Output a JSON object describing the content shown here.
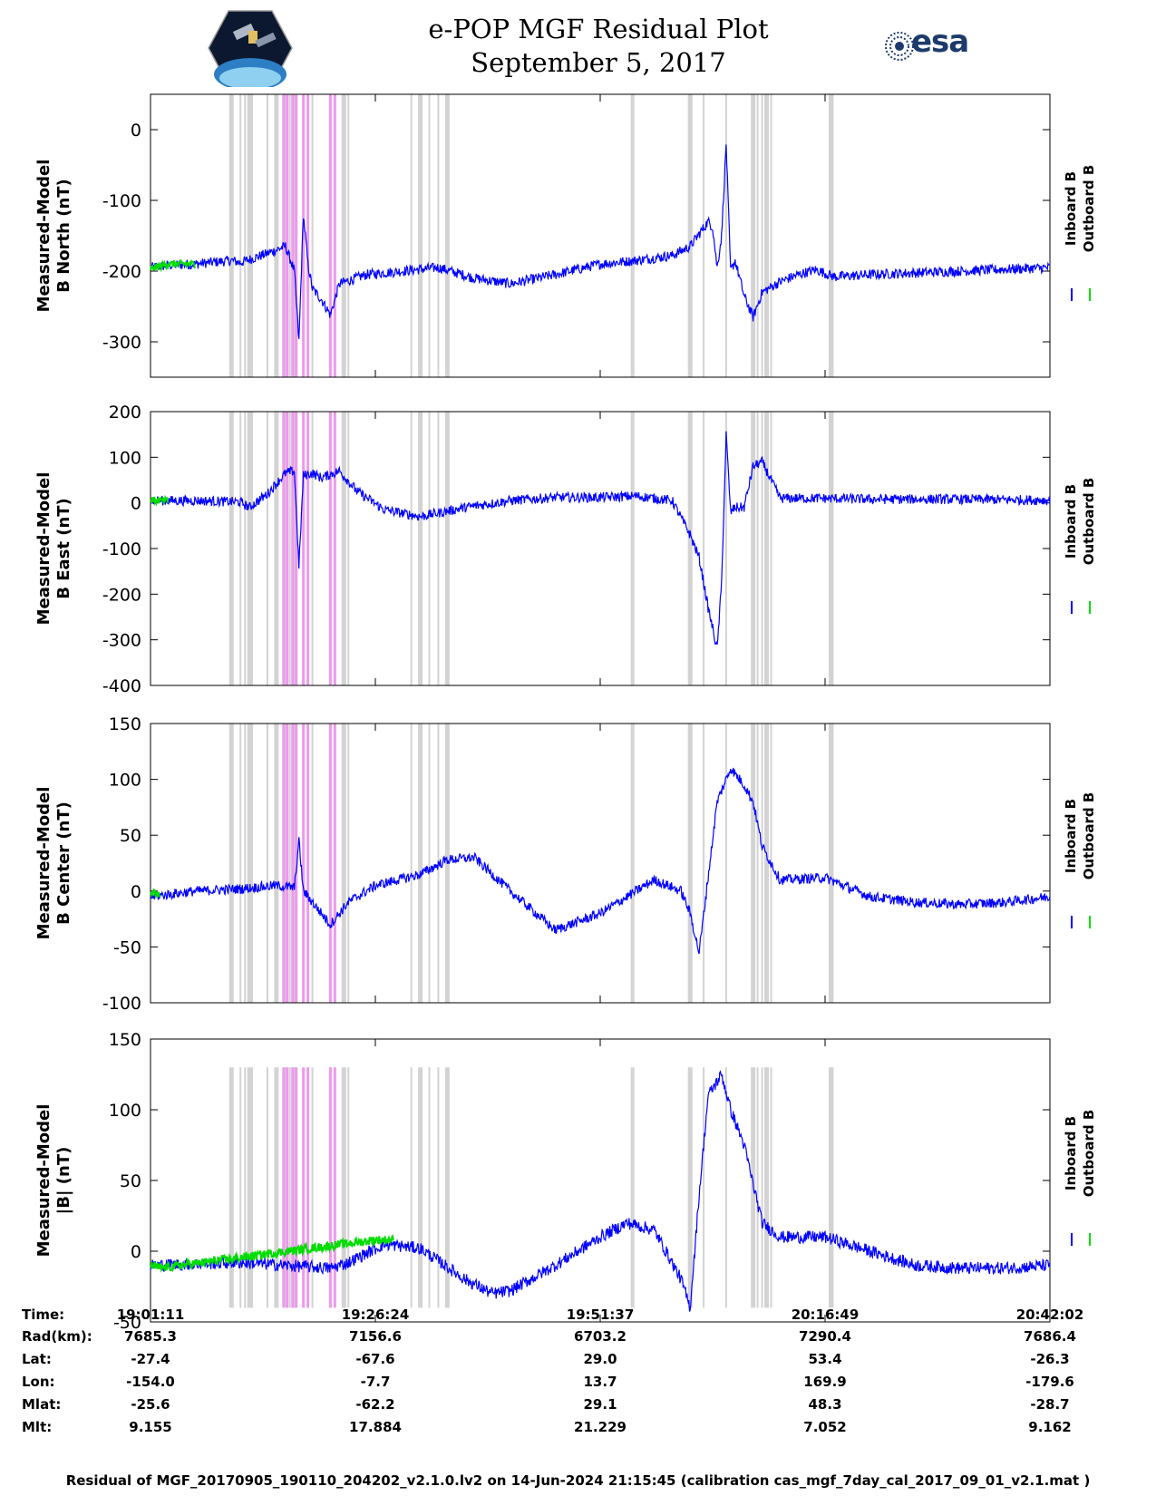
{
  "header": {
    "title": "e-POP MGF Residual Plot",
    "subtitle": "September 5, 2017",
    "left_logo": "cassiope-satellite-logo",
    "right_logo_text": "esa"
  },
  "colors": {
    "inboard": "#0000ff",
    "outboard": "#00dd00",
    "gray_band": "#d3d3d3",
    "pink_band": "#ee99ee"
  },
  "chart_data": [
    {
      "type": "line",
      "ylabel": [
        "Measured-Model",
        "B North (nT)"
      ],
      "ylim": [
        -350,
        50
      ],
      "yticks": [
        0,
        -100,
        -200,
        -300
      ],
      "legend": [
        "Inboard B",
        "Outboard B"
      ],
      "series": [
        {
          "name": "Inboard B",
          "x": [
            0,
            0.02,
            0.05,
            0.09,
            0.1,
            0.13,
            0.15,
            0.16,
            0.165,
            0.17,
            0.175,
            0.18,
            0.19,
            0.2,
            0.21,
            0.24,
            0.28,
            0.32,
            0.36,
            0.4,
            0.45,
            0.5,
            0.54,
            0.58,
            0.6,
            0.62,
            0.625,
            0.63,
            0.635,
            0.64,
            0.645,
            0.65,
            0.66,
            0.67,
            0.68,
            0.7,
            0.72,
            0.74,
            0.76,
            0.8,
            0.9,
            1.0
          ],
          "y": [
            -195,
            -192,
            -190,
            -185,
            -188,
            -175,
            -165,
            -200,
            -300,
            -120,
            -190,
            -225,
            -240,
            -262,
            -218,
            -205,
            -200,
            -195,
            -210,
            -218,
            -205,
            -190,
            -185,
            -178,
            -165,
            -130,
            -138,
            -195,
            -150,
            -20,
            -200,
            -185,
            -235,
            -265,
            -230,
            -215,
            -205,
            -198,
            -208,
            -205,
            -200,
            -195
          ]
        },
        {
          "name": "Outboard B",
          "x": [
            0,
            0.02,
            0.05
          ],
          "y": [
            -197,
            -190,
            -190
          ]
        }
      ]
    },
    {
      "type": "line",
      "ylabel": [
        "Measured-Model",
        "B East (nT)"
      ],
      "ylim": [
        -400,
        200
      ],
      "yticks": [
        200,
        100,
        0,
        -100,
        -200,
        -300,
        -400
      ],
      "legend": [
        "Inboard B",
        "Outboard B"
      ],
      "series": [
        {
          "name": "Inboard B",
          "x": [
            0,
            0.05,
            0.1,
            0.11,
            0.13,
            0.15,
            0.16,
            0.165,
            0.17,
            0.18,
            0.19,
            0.21,
            0.23,
            0.26,
            0.3,
            0.35,
            0.4,
            0.45,
            0.5,
            0.54,
            0.58,
            0.6,
            0.61,
            0.62,
            0.63,
            0.635,
            0.64,
            0.645,
            0.65,
            0.66,
            0.67,
            0.68,
            0.7,
            0.75,
            0.8,
            0.9,
            1.0
          ],
          "y": [
            5,
            5,
            2,
            -10,
            20,
            65,
            70,
            -140,
            60,
            65,
            55,
            70,
            25,
            -15,
            -30,
            -10,
            5,
            12,
            12,
            15,
            5,
            -70,
            -120,
            -230,
            -320,
            -175,
            150,
            -20,
            -10,
            -10,
            80,
            90,
            10,
            10,
            8,
            8,
            6
          ]
        },
        {
          "name": "Outboard B",
          "x": [
            0,
            0.02
          ],
          "y": [
            6,
            4
          ]
        }
      ]
    },
    {
      "type": "line",
      "ylabel": [
        "Measured-Model",
        "B Center (nT)"
      ],
      "ylim": [
        -100,
        150
      ],
      "yticks": [
        150,
        100,
        50,
        0,
        -50,
        -100
      ],
      "legend": [
        "Inboard B",
        "Outboard B"
      ],
      "series": [
        {
          "name": "Inboard B",
          "x": [
            0,
            0.05,
            0.1,
            0.14,
            0.16,
            0.165,
            0.17,
            0.2,
            0.22,
            0.25,
            0.3,
            0.33,
            0.36,
            0.4,
            0.45,
            0.5,
            0.53,
            0.56,
            0.59,
            0.6,
            0.61,
            0.63,
            0.645,
            0.66,
            0.67,
            0.68,
            0.7,
            0.75,
            0.8,
            0.85,
            0.9,
            0.95,
            1.0
          ],
          "y": [
            -5,
            0,
            2,
            5,
            3,
            45,
            0,
            -30,
            -10,
            5,
            15,
            28,
            30,
            0,
            -35,
            -20,
            -5,
            10,
            0,
            -20,
            -55,
            80,
            110,
            95,
            80,
            40,
            10,
            12,
            -5,
            -10,
            -12,
            -10,
            -5
          ]
        },
        {
          "name": "Outboard B",
          "x": [
            0,
            0.01
          ],
          "y": [
            0,
            -3
          ]
        }
      ]
    },
    {
      "type": "line",
      "ylabel": [
        "Measured-Model",
        "|B| (nT)"
      ],
      "ylim": [
        -50,
        150
      ],
      "yticks": [
        150,
        100,
        50,
        0,
        -50
      ],
      "legend": [
        "Inboard B",
        "Outboard B"
      ],
      "series": [
        {
          "name": "Inboard B",
          "x": [
            0,
            0.1,
            0.15,
            0.2,
            0.22,
            0.26,
            0.3,
            0.35,
            0.38,
            0.4,
            0.45,
            0.5,
            0.53,
            0.56,
            0.59,
            0.6,
            0.61,
            0.62,
            0.635,
            0.645,
            0.66,
            0.68,
            0.7,
            0.75,
            0.8,
            0.85,
            0.9,
            0.95,
            1.0
          ],
          "y": [
            -10,
            -8,
            -10,
            -12,
            -8,
            5,
            2,
            -20,
            -30,
            -28,
            -10,
            10,
            20,
            15,
            -20,
            -40,
            40,
            110,
            125,
            100,
            75,
            20,
            10,
            10,
            0,
            -10,
            -12,
            -12,
            -10
          ]
        },
        {
          "name": "Outboard B",
          "x": [
            0,
            0.01,
            0.25,
            0.27
          ],
          "y": [
            -10,
            -12,
            8,
            8
          ]
        }
      ]
    }
  ],
  "bands": {
    "gray": [
      0.09,
      0.1,
      0.105,
      0.11,
      0.113,
      0.13,
      0.14,
      0.15,
      0.155,
      0.16,
      0.18,
      0.2,
      0.215,
      0.22,
      0.29,
      0.3,
      0.31,
      0.32,
      0.33,
      0.535,
      0.537,
      0.6,
      0.615,
      0.64,
      0.67,
      0.675,
      0.68,
      0.685,
      0.69,
      0.755,
      0.757
    ],
    "pink": [
      0.148,
      0.152,
      0.158,
      0.162,
      0.17,
      0.175,
      0.2,
      0.205
    ]
  },
  "ephemeris": {
    "labels": [
      "Time:",
      "Rad(km):",
      "Lat:",
      "Lon:",
      "Mlat:",
      "Mlt:"
    ],
    "columns": [
      [
        "19:01:11",
        "7685.3",
        "-27.4",
        "-154.0",
        "-25.6",
        "9.155"
      ],
      [
        "19:26:24",
        "7156.6",
        "-67.6",
        "-7.7",
        "-62.2",
        "17.884"
      ],
      [
        "19:51:37",
        "6703.2",
        "29.0",
        "13.7",
        "29.1",
        "21.229"
      ],
      [
        "20:16:49",
        "7290.4",
        "53.4",
        "169.9",
        "48.3",
        "7.052"
      ],
      [
        "20:42:02",
        "7686.4",
        "-26.3",
        "-179.6",
        "-28.7",
        "9.162"
      ]
    ]
  },
  "footer": "Residual of MGF_20170905_190110_204202_v2.1.0.lv2 on 14-Jun-2024 21:15:45 (calibration cas_mgf_7day_cal_2017_09_01_v2.1.mat )"
}
